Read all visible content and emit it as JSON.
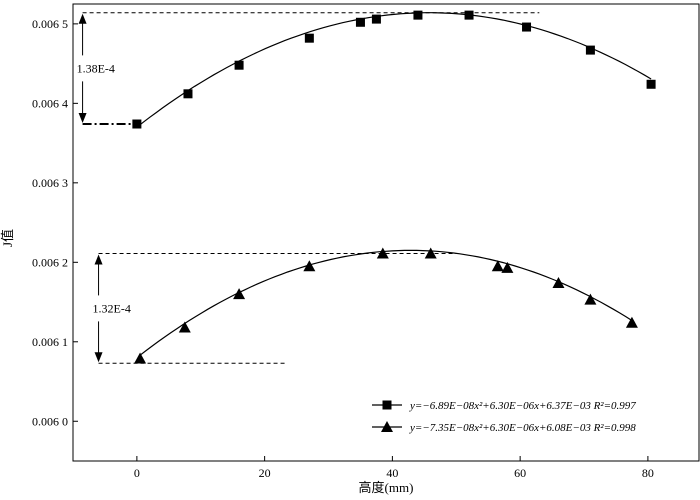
{
  "chart_data": {
    "type": "scatter",
    "xlabel": "高度(mm)",
    "ylabel": "J值",
    "xlim": [
      -10,
      88
    ],
    "ylim": [
      0.00595,
      0.006525
    ],
    "x_ticks": [
      0,
      20,
      40,
      60,
      80
    ],
    "x_tick_labels": [
      "0",
      "20",
      "40",
      "60",
      "80"
    ],
    "y_ticks": [
      0.006,
      0.0061,
      0.0062,
      0.0063,
      0.0064,
      0.0065
    ],
    "y_tick_labels": [
      "0.006 0",
      "0.006 1",
      "0.006 2",
      "0.006 3",
      "0.006 4",
      "0.006 5"
    ],
    "grid": false,
    "legend_position": "bottom-right",
    "series": [
      {
        "name": "y=−6.89E−08x²+6.30E−06x+6.37E−03  R²=0.997",
        "marker": "square",
        "x": [
          0,
          8,
          16,
          27,
          35,
          37.5,
          44,
          52,
          61,
          71,
          80.5
        ],
        "y": [
          0.006374,
          0.006412,
          0.006448,
          0.006482,
          0.006502,
          0.006506,
          0.006511,
          0.006511,
          0.006496,
          0.006467,
          0.006424
        ],
        "fit": {
          "a": -6.89e-08,
          "b": 6.3e-06,
          "c": 0.00637,
          "x_range": [
            0,
            80.5
          ]
        }
      },
      {
        "name": "y=−7.35E−08x²+6.30E−06x+6.08E−03  R²=0.998",
        "marker": "triangle",
        "x": [
          0.5,
          7.5,
          16,
          27,
          38.5,
          46,
          56.5,
          58,
          66,
          71,
          77.5
        ],
        "y": [
          0.006079,
          0.006118,
          0.00616,
          0.006195,
          0.006211,
          0.006211,
          0.006195,
          0.006193,
          0.006174,
          0.006153,
          0.006124
        ],
        "fit": {
          "a": -7.35e-08,
          "b": 6.3e-06,
          "c": 0.00608,
          "x_range": [
            0.5,
            77.5
          ]
        }
      }
    ],
    "annotations": [
      {
        "text": "1.38E-4",
        "x": -8.5,
        "y_top": 0.006514,
        "y_bottom": 0.006374,
        "top_line_x": [
          -8.5,
          63
        ],
        "bottom_line_x": [
          -8.5,
          0
        ]
      },
      {
        "text": "1.32E-4",
        "x": -6,
        "y_top": 0.006211,
        "y_bottom": 0.006073,
        "top_line_x": [
          -6,
          50
        ],
        "bottom_line_x": [
          -6,
          23.5
        ]
      }
    ]
  }
}
